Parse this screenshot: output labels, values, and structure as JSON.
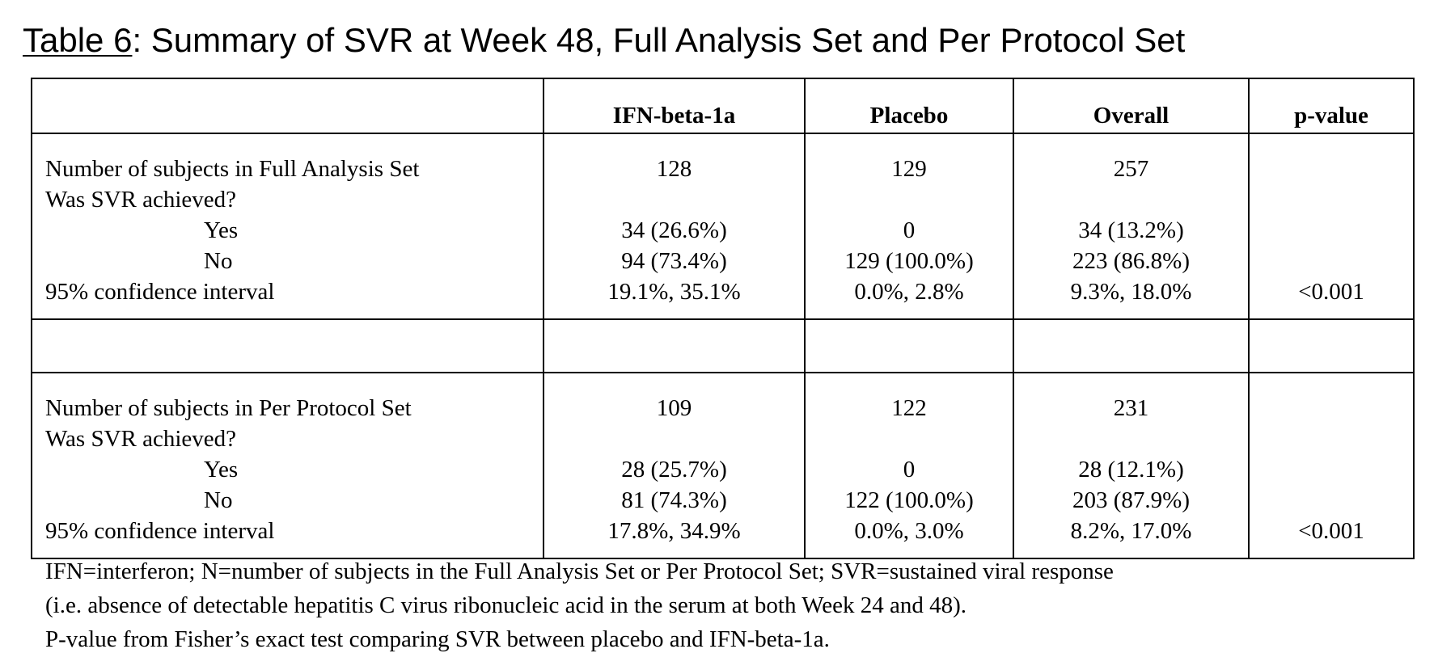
{
  "title": {
    "label": "Table 6",
    "text": ": Summary of SVR at Week 48, Full Analysis Set and Per Protocol Set"
  },
  "table": {
    "headers": [
      "",
      "IFN-beta-1a",
      "Placebo",
      "Overall",
      "p-value"
    ],
    "full_analysis": {
      "labels": [
        "Number of subjects in Full Analysis Set",
        "Was SVR achieved?",
        "Yes",
        "No",
        "95% confidence interval"
      ],
      "ifn": [
        "128",
        "",
        "34 (26.6%)",
        "94 (73.4%)",
        "19.1%, 35.1%"
      ],
      "placebo": [
        "129",
        "",
        "0",
        "129 (100.0%)",
        "0.0%, 2.8%"
      ],
      "overall": [
        "257",
        "",
        "34 (13.2%)",
        "223 (86.8%)",
        "9.3%, 18.0%"
      ],
      "pvalue": [
        "",
        "",
        "",
        "",
        "<0.001"
      ]
    },
    "per_protocol": {
      "labels": [
        "Number of subjects in Per Protocol Set",
        "Was SVR achieved?",
        "Yes",
        "No",
        "95% confidence interval"
      ],
      "ifn": [
        "109",
        "",
        "28 (25.7%)",
        "81 (74.3%)",
        "17.8%, 34.9%"
      ],
      "placebo": [
        "122",
        "",
        "0",
        "122 (100.0%)",
        "0.0%, 3.0%"
      ],
      "overall": [
        "231",
        "",
        "28 (12.1%)",
        "203 (87.9%)",
        "8.2%, 17.0%"
      ],
      "pvalue": [
        "",
        "",
        "",
        "",
        "<0.001"
      ]
    }
  },
  "footnotes": [
    "IFN=interferon; N=number of subjects in the Full Analysis Set or Per Protocol Set; SVR=sustained viral response",
    "(i.e. absence of detectable hepatitis C virus ribonucleic acid in the serum at both Week 24 and 48).",
    "P-value from Fisher’s exact test comparing SVR between placebo and IFN-beta-1a."
  ]
}
